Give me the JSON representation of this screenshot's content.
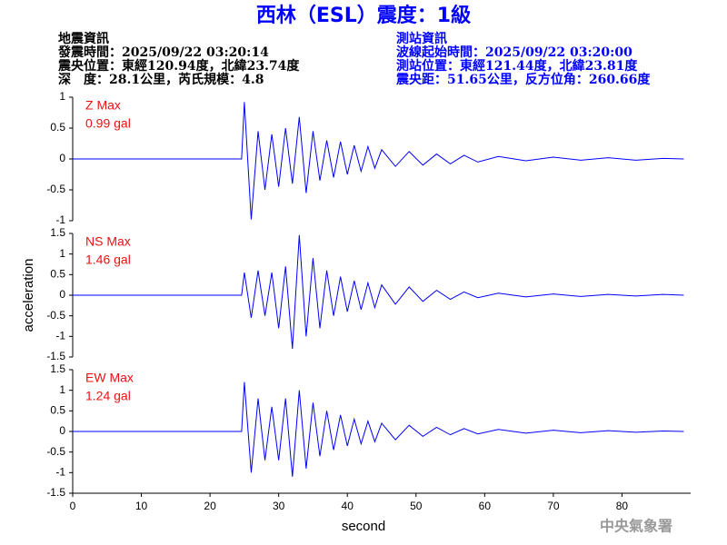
{
  "header": {
    "title": "西林（ESL）震度：1級",
    "left": [
      "地震資訊",
      "發震時間：2025/09/22 03:20:14",
      "震央位置：東經120.94度，北緯23.74度",
      "深　度：28.1公里，芮氏規模：4.8"
    ],
    "right": [
      "測站資訊",
      "波線起始時間：2025/09/22 03:20:00",
      "測站位置：東經121.44度，北緯23.81度",
      "震央距：51.65公里，反方位角：260.66度"
    ]
  },
  "watermark": "中央氣象署",
  "chart_data": [
    {
      "type": "line",
      "annotation": [
        "Z Max",
        "0.99 gal"
      ],
      "x": [
        0,
        24.6,
        25,
        26,
        27,
        28,
        29,
        30,
        31,
        32,
        33,
        34,
        35,
        36,
        37,
        38,
        39,
        40,
        41,
        42,
        43,
        44,
        45,
        47,
        49,
        51,
        53,
        55,
        57,
        59,
        62,
        66,
        70,
        74,
        78,
        82,
        86,
        89
      ],
      "xlim": [
        0,
        90
      ],
      "ylim": [
        -1,
        1
      ],
      "yticks": [
        -1,
        -0.5,
        0,
        0.5,
        1
      ],
      "series": [
        {
          "color": "#0000ff",
          "values": [
            0,
            0,
            0.92,
            -0.98,
            0.45,
            -0.5,
            0.4,
            -0.45,
            0.5,
            -0.4,
            0.68,
            -0.55,
            0.45,
            -0.35,
            0.3,
            -0.3,
            0.28,
            -0.25,
            0.22,
            -0.2,
            0.2,
            -0.15,
            0.15,
            -0.12,
            0.12,
            -0.1,
            0.08,
            -0.08,
            0.06,
            -0.05,
            0.04,
            -0.03,
            0.03,
            -0.02,
            0.02,
            -0.02,
            0.01,
            0
          ]
        }
      ]
    },
    {
      "type": "line",
      "annotation": [
        "NS Max",
        "1.46 gal"
      ],
      "ylabel": "acceleration",
      "x": [
        0,
        24.6,
        25,
        26,
        27,
        28,
        29,
        30,
        31,
        32,
        33,
        34,
        35,
        36,
        37,
        38,
        39,
        40,
        41,
        42,
        43,
        44,
        45,
        47,
        49,
        51,
        53,
        55,
        57,
        59,
        62,
        66,
        70,
        74,
        78,
        82,
        86,
        89
      ],
      "xlim": [
        0,
        90
      ],
      "ylim": [
        -1.5,
        1.5
      ],
      "yticks": [
        -1.5,
        -1,
        -0.5,
        0,
        0.5,
        1,
        1.5
      ],
      "series": [
        {
          "color": "#0000ff",
          "values": [
            0,
            0,
            0.55,
            -0.55,
            0.6,
            -0.5,
            0.55,
            -0.8,
            0.7,
            -1.3,
            1.46,
            -1.0,
            0.9,
            -0.8,
            0.6,
            -0.5,
            0.45,
            -0.4,
            0.35,
            -0.35,
            0.3,
            -0.3,
            0.25,
            -0.22,
            0.2,
            -0.15,
            0.12,
            -0.1,
            0.08,
            -0.06,
            0.05,
            -0.04,
            0.03,
            -0.03,
            0.02,
            -0.02,
            0.02,
            0
          ]
        }
      ]
    },
    {
      "type": "line",
      "annotation": [
        "EW Max",
        "1.24 gal"
      ],
      "xlabel": "second",
      "x": [
        0,
        24.6,
        25,
        26,
        27,
        28,
        29,
        30,
        31,
        32,
        33,
        34,
        35,
        36,
        37,
        38,
        39,
        40,
        41,
        42,
        43,
        44,
        45,
        47,
        49,
        51,
        53,
        55,
        57,
        59,
        62,
        66,
        70,
        74,
        78,
        82,
        86,
        89
      ],
      "xlim": [
        0,
        90
      ],
      "ylim": [
        -1.5,
        1.5
      ],
      "yticks": [
        -1.5,
        -1,
        -0.5,
        0,
        0.5,
        1,
        1.5
      ],
      "xticks": [
        0,
        10,
        20,
        30,
        40,
        50,
        60,
        70,
        80
      ],
      "series": [
        {
          "color": "#0000ff",
          "values": [
            0,
            0,
            1.2,
            -1.0,
            0.8,
            -0.7,
            0.6,
            -0.7,
            0.8,
            -1.1,
            1.0,
            -0.9,
            0.7,
            -0.6,
            0.5,
            -0.45,
            0.4,
            -0.35,
            0.3,
            -0.3,
            0.25,
            -0.25,
            0.2,
            -0.2,
            0.15,
            -0.12,
            0.1,
            -0.08,
            0.07,
            -0.06,
            0.05,
            -0.04,
            0.03,
            -0.03,
            0.02,
            -0.02,
            0.01,
            0
          ]
        }
      ]
    }
  ]
}
